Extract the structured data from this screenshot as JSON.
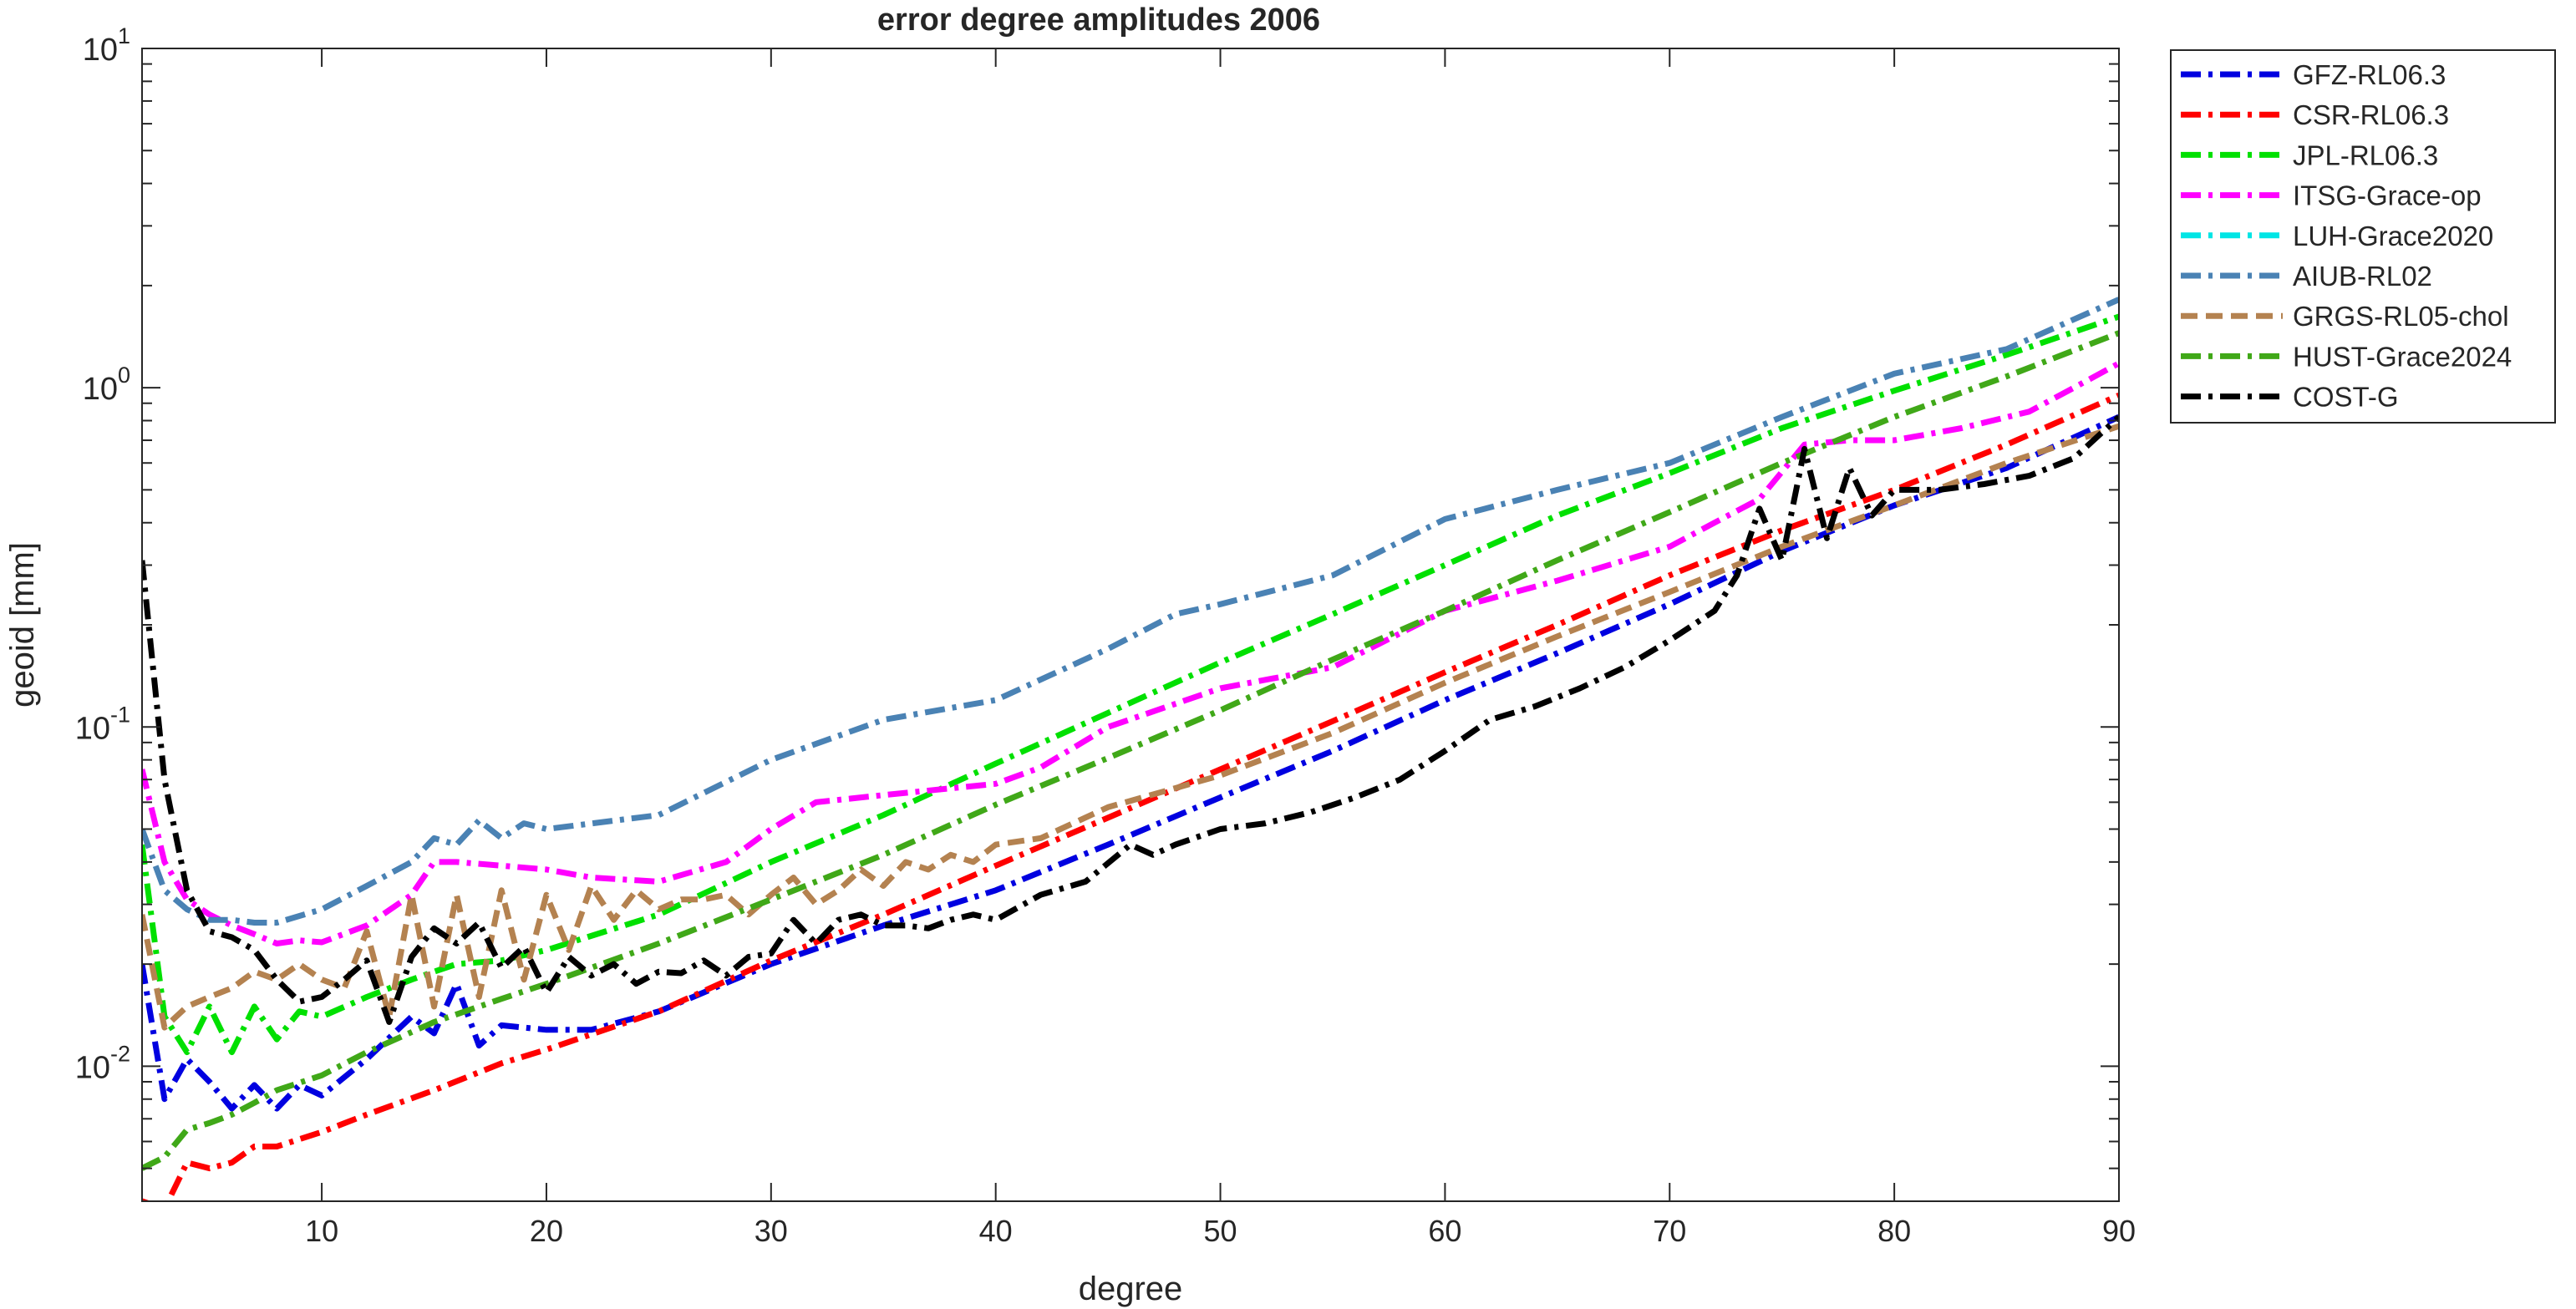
{
  "chart_data": {
    "type": "line",
    "title": "error degree amplitudes 2006",
    "xlabel": "degree",
    "ylabel": "geoid [mm]",
    "xlim": [
      2,
      90
    ],
    "ylim": [
      0.004,
      10
    ],
    "yscale": "log",
    "xticks": [
      10,
      20,
      30,
      40,
      50,
      60,
      70,
      80,
      90
    ],
    "xtick_labels": [
      "10",
      "20",
      "30",
      "40",
      "50",
      "60",
      "70",
      "80",
      "90"
    ],
    "yticks": [
      0.01,
      0.1,
      1,
      10
    ],
    "ytick_labels": [
      {
        "base": "10",
        "exp": "-2"
      },
      {
        "base": "10",
        "exp": "-1"
      },
      {
        "base": "10",
        "exp": "0"
      },
      {
        "base": "10",
        "exp": "1"
      }
    ],
    "grid": false,
    "legend_position": "outside-top-right",
    "series": [
      {
        "name": "GFZ-RL06.3",
        "color": "#0000e0",
        "dash": "dashdot",
        "x": [
          2,
          3,
          4,
          5,
          6,
          7,
          8,
          9,
          10,
          12,
          14,
          15,
          16,
          17,
          18,
          20,
          22,
          25,
          30,
          35,
          40,
          45,
          50,
          55,
          60,
          65,
          70,
          75,
          80,
          85,
          90
        ],
        "y": [
          0.02,
          0.008,
          0.0105,
          0.009,
          0.0075,
          0.0088,
          0.0075,
          0.0088,
          0.0082,
          0.0105,
          0.014,
          0.0125,
          0.0175,
          0.0115,
          0.0132,
          0.0128,
          0.0128,
          0.0145,
          0.02,
          0.026,
          0.033,
          0.045,
          0.062,
          0.085,
          0.12,
          0.165,
          0.23,
          0.33,
          0.45,
          0.58,
          0.82
        ]
      },
      {
        "name": "CSR-RL06.3",
        "color": "#ff0000",
        "dash": "dashdot",
        "x": [
          2,
          3,
          4,
          5,
          6,
          7,
          8,
          10,
          12,
          15,
          18,
          20,
          25,
          30,
          35,
          40,
          45,
          50,
          55,
          60,
          65,
          70,
          75,
          80,
          85,
          90
        ],
        "y": [
          0.004,
          0.0038,
          0.0052,
          0.005,
          0.0052,
          0.0058,
          0.0058,
          0.0064,
          0.0072,
          0.0085,
          0.0102,
          0.0112,
          0.0145,
          0.0205,
          0.028,
          0.039,
          0.054,
          0.075,
          0.104,
          0.145,
          0.2,
          0.28,
          0.38,
          0.5,
          0.68,
          0.95
        ]
      },
      {
        "name": "JPL-RL06.3",
        "color": "#00e000",
        "dash": "dashdot",
        "x": [
          2,
          3,
          4,
          5,
          6,
          7,
          8,
          9,
          10,
          12,
          14,
          15,
          16,
          18,
          20,
          25,
          30,
          35,
          40,
          45,
          50,
          55,
          60,
          65,
          70,
          75,
          80,
          85,
          90
        ],
        "y": [
          0.045,
          0.014,
          0.011,
          0.015,
          0.011,
          0.015,
          0.012,
          0.0145,
          0.014,
          0.016,
          0.018,
          0.019,
          0.02,
          0.0205,
          0.022,
          0.028,
          0.04,
          0.055,
          0.078,
          0.11,
          0.155,
          0.215,
          0.3,
          0.42,
          0.56,
          0.76,
          0.98,
          1.25,
          1.62
        ]
      },
      {
        "name": "ITSG-Grace-op",
        "color": "#ff00ff",
        "dash": "dashdot",
        "x": [
          2,
          3,
          4,
          5,
          6,
          7,
          8,
          9,
          10,
          12,
          14,
          15,
          16,
          18,
          20,
          22,
          25,
          28,
          30,
          32,
          35,
          40,
          42,
          45,
          50,
          55,
          60,
          65,
          70,
          72,
          74,
          76,
          78,
          80,
          83,
          86,
          88,
          90
        ],
        "y": [
          0.075,
          0.04,
          0.031,
          0.028,
          0.026,
          0.0245,
          0.023,
          0.0235,
          0.0232,
          0.026,
          0.032,
          0.04,
          0.04,
          0.039,
          0.038,
          0.036,
          0.035,
          0.04,
          0.05,
          0.06,
          0.063,
          0.068,
          0.076,
          0.1,
          0.13,
          0.15,
          0.22,
          0.27,
          0.34,
          0.4,
          0.47,
          0.68,
          0.7,
          0.7,
          0.76,
          0.85,
          1.0,
          1.18
        ]
      },
      {
        "name": "LUH-Grace2020",
        "color": "#00e5e5",
        "dash": "dashdot",
        "x": [],
        "y": []
      },
      {
        "name": "AIUB-RL02",
        "color": "#4a82b4",
        "dash": "dashdot",
        "x": [
          2,
          3,
          4,
          5,
          6,
          7,
          8,
          10,
          12,
          14,
          15,
          16,
          17,
          18,
          19,
          20,
          25,
          30,
          35,
          40,
          45,
          48,
          50,
          55,
          60,
          65,
          70,
          75,
          80,
          85,
          90
        ],
        "y": [
          0.05,
          0.033,
          0.029,
          0.027,
          0.027,
          0.0265,
          0.0265,
          0.029,
          0.034,
          0.04,
          0.047,
          0.045,
          0.053,
          0.047,
          0.052,
          0.05,
          0.055,
          0.08,
          0.105,
          0.12,
          0.17,
          0.215,
          0.23,
          0.28,
          0.41,
          0.5,
          0.6,
          0.82,
          1.1,
          1.3,
          1.82
        ]
      },
      {
        "name": "GRGS-RL05-chol",
        "color": "#b48250",
        "dash": "dash",
        "x": [
          2,
          3,
          4,
          5,
          6,
          7,
          8,
          9,
          10,
          11,
          12,
          13,
          14,
          15,
          16,
          17,
          18,
          19,
          20,
          21,
          22,
          23,
          24,
          25,
          26,
          27,
          28,
          29,
          30,
          31,
          32,
          33,
          34,
          35,
          36,
          37,
          38,
          39,
          40,
          42,
          45,
          50,
          55,
          60,
          65,
          70,
          75,
          80,
          85,
          90
        ],
        "y": [
          0.028,
          0.013,
          0.015,
          0.016,
          0.017,
          0.019,
          0.018,
          0.02,
          0.018,
          0.017,
          0.025,
          0.014,
          0.032,
          0.015,
          0.032,
          0.016,
          0.033,
          0.018,
          0.032,
          0.022,
          0.034,
          0.027,
          0.033,
          0.029,
          0.031,
          0.031,
          0.032,
          0.028,
          0.032,
          0.036,
          0.03,
          0.033,
          0.038,
          0.034,
          0.04,
          0.038,
          0.042,
          0.04,
          0.045,
          0.047,
          0.058,
          0.072,
          0.096,
          0.135,
          0.185,
          0.25,
          0.34,
          0.45,
          0.6,
          0.77
        ]
      },
      {
        "name": "HUST-Grace2024",
        "color": "#40a818",
        "dash": "dashdot",
        "x": [
          2,
          3,
          4,
          5,
          6,
          7,
          8,
          10,
          12,
          15,
          18,
          20,
          25,
          30,
          35,
          40,
          45,
          50,
          55,
          60,
          65,
          70,
          75,
          80,
          85,
          90
        ],
        "y": [
          0.005,
          0.0054,
          0.0065,
          0.0068,
          0.0072,
          0.0078,
          0.0085,
          0.0094,
          0.011,
          0.0135,
          0.0158,
          0.0175,
          0.023,
          0.031,
          0.042,
          0.059,
          0.081,
          0.112,
          0.158,
          0.22,
          0.31,
          0.43,
          0.6,
          0.82,
          1.08,
          1.45
        ]
      },
      {
        "name": "COST-G",
        "color": "#000000",
        "dash": "dashdot",
        "x": [
          2,
          3,
          4,
          5,
          6,
          7,
          8,
          9,
          10,
          11,
          12,
          13,
          14,
          15,
          16,
          17,
          18,
          19,
          20,
          21,
          22,
          23,
          24,
          25,
          26,
          27,
          28,
          29,
          30,
          31,
          32,
          33,
          34,
          35,
          36,
          37,
          38,
          39,
          40,
          42,
          44,
          46,
          47,
          48,
          50,
          52,
          54,
          56,
          58,
          60,
          62,
          64,
          66,
          68,
          70,
          72,
          73,
          74,
          75,
          76,
          77,
          78,
          79,
          80,
          82,
          84,
          86,
          88,
          90
        ],
        "y": [
          0.31,
          0.07,
          0.033,
          0.025,
          0.024,
          0.022,
          0.018,
          0.0155,
          0.016,
          0.018,
          0.0205,
          0.0135,
          0.021,
          0.0255,
          0.023,
          0.0265,
          0.0195,
          0.0225,
          0.0165,
          0.021,
          0.0185,
          0.02,
          0.0175,
          0.019,
          0.0188,
          0.0205,
          0.0185,
          0.021,
          0.0215,
          0.027,
          0.023,
          0.027,
          0.028,
          0.026,
          0.026,
          0.0255,
          0.027,
          0.028,
          0.027,
          0.032,
          0.035,
          0.045,
          0.042,
          0.045,
          0.05,
          0.052,
          0.056,
          0.062,
          0.07,
          0.085,
          0.105,
          0.115,
          0.13,
          0.15,
          0.18,
          0.22,
          0.28,
          0.44,
          0.31,
          0.66,
          0.36,
          0.58,
          0.42,
          0.5,
          0.5,
          0.52,
          0.55,
          0.62,
          0.82
        ]
      }
    ]
  }
}
